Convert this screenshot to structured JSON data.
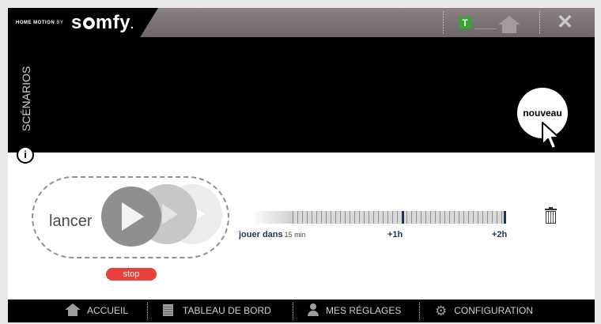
{
  "header": {
    "brand_small": "HOME MOTION",
    "brand_by": "BY",
    "brand_big_s": "s",
    "brand_big_rest": "mfy",
    "brand_dot": ".",
    "badge": "T",
    "close": "✕"
  },
  "panel": {
    "section_label": "SCÉNARIOS",
    "info": "i",
    "new_button": "nouveau"
  },
  "scenario": {
    "launch_label": "lancer",
    "stop_label": "stop",
    "play_in_label": "jouer dans",
    "delay_value": "15 min",
    "mark_1h": "+1h",
    "mark_2h": "+2h"
  },
  "footer": {
    "items": [
      {
        "label": "ACCUEIL",
        "icon": "home-icon"
      },
      {
        "label": "TABLEAU DE BORD",
        "icon": "dashboard-icon"
      },
      {
        "label": "MES RÉGLAGES",
        "icon": "user-icon"
      },
      {
        "label": "CONFIGURATION",
        "icon": "gear-icon"
      }
    ]
  },
  "colors": {
    "accent_green": "#3ba335",
    "stop_red": "#e8413c",
    "navy_text": "#1f3651"
  }
}
